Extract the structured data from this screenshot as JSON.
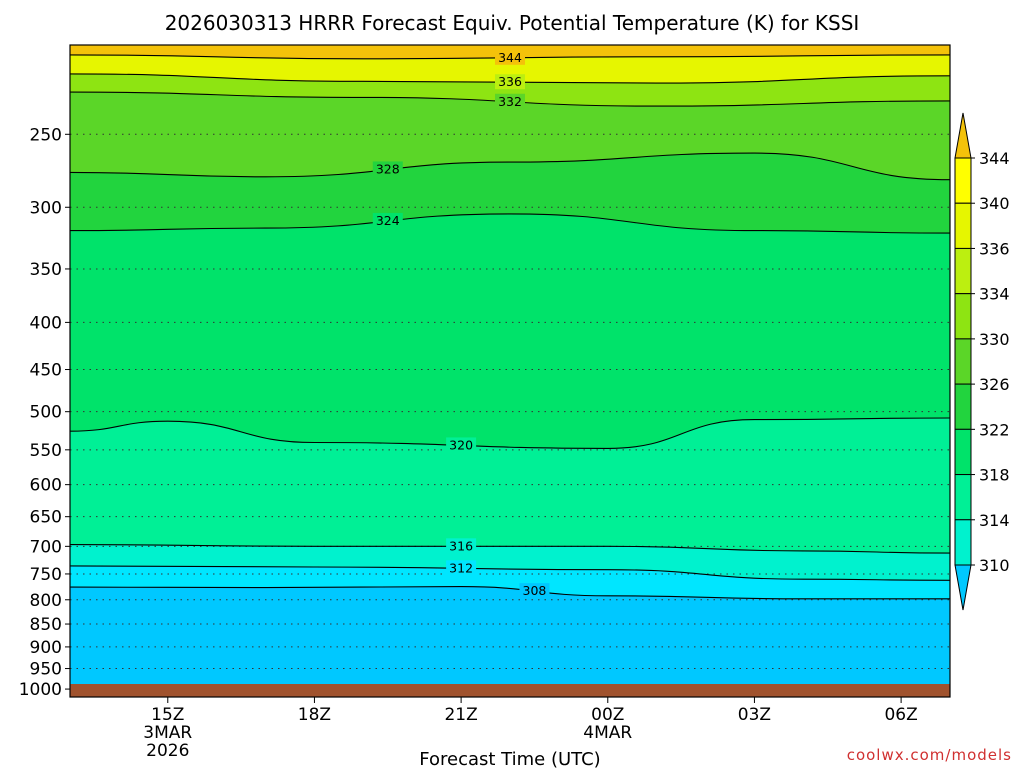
{
  "chart_data": {
    "type": "heatmap",
    "title": "2026030313 HRRR Forecast Equiv. Potential Temperature (K) for KSSI",
    "xlabel": "Forecast Time (UTC)",
    "ylabel": "",
    "credit": "coolwx.com/models",
    "x_ticks": [
      {
        "label": "15Z",
        "sub1": "3MAR",
        "sub2": "2026",
        "hour": 2
      },
      {
        "label": "18Z",
        "sub1": "",
        "sub2": "",
        "hour": 5
      },
      {
        "label": "21Z",
        "sub1": "",
        "sub2": "",
        "hour": 8
      },
      {
        "label": "00Z",
        "sub1": "4MAR",
        "sub2": "",
        "hour": 11
      },
      {
        "label": "03Z",
        "sub1": "",
        "sub2": "",
        "hour": 14
      },
      {
        "label": "06Z",
        "sub1": "",
        "sub2": "",
        "hour": 17
      }
    ],
    "xlim": [
      0,
      18
    ],
    "y_ticks": [
      "250",
      "300",
      "350",
      "400",
      "450",
      "500",
      "550",
      "600",
      "650",
      "700",
      "750",
      "800",
      "850",
      "900",
      "950",
      "1000"
    ],
    "y_tick_values": [
      250,
      300,
      350,
      400,
      450,
      500,
      550,
      600,
      650,
      700,
      750,
      800,
      850,
      900,
      950,
      1000
    ],
    "ylim": [
      200,
      1020
    ],
    "y_scale": "log",
    "colorbar": {
      "labels": [
        "344",
        "340",
        "336",
        "334",
        "330",
        "326",
        "322",
        "318",
        "314",
        "310"
      ],
      "levels": [
        310,
        314,
        318,
        322,
        326,
        330,
        334,
        336,
        340,
        344
      ],
      "colors": [
        "#00e6ff",
        "#00f2ce",
        "#00f096",
        "#00e36a",
        "#22d43e",
        "#5bd628",
        "#8ee412",
        "#bcef10",
        "#e6f600",
        "#ffff00"
      ],
      "extend_low": "#00c8ff",
      "extend_high": "#f4c20a"
    },
    "contours": [
      {
        "value": 344,
        "label": "344",
        "points": [
          [
            0,
            205
          ],
          [
            6,
            207
          ],
          [
            12,
            206
          ],
          [
            18,
            205
          ]
        ]
      },
      {
        "value": 336,
        "label": "336",
        "points": [
          [
            0,
            215
          ],
          [
            6,
            219
          ],
          [
            12,
            220
          ],
          [
            18,
            216
          ]
        ]
      },
      {
        "value": 332,
        "label": "332",
        "points": [
          [
            0,
            225
          ],
          [
            6,
            228
          ],
          [
            12,
            233
          ],
          [
            18,
            230
          ]
        ]
      },
      {
        "value": 328,
        "label": "328",
        "points": [
          [
            0,
            275
          ],
          [
            4,
            278
          ],
          [
            9,
            268
          ],
          [
            14,
            262
          ],
          [
            18,
            280
          ]
        ]
      },
      {
        "value": 324,
        "label": "324",
        "points": [
          [
            0,
            318
          ],
          [
            4,
            316
          ],
          [
            9,
            305
          ],
          [
            14,
            318
          ],
          [
            18,
            320
          ]
        ]
      },
      {
        "value": 320,
        "label": "320",
        "points": [
          [
            0,
            525
          ],
          [
            2,
            512
          ],
          [
            5,
            540
          ],
          [
            11,
            548
          ],
          [
            14,
            510
          ],
          [
            18,
            508
          ]
        ]
      },
      {
        "value": 316,
        "label": "316",
        "points": [
          [
            0,
            697
          ],
          [
            5,
            700
          ],
          [
            11,
            700
          ],
          [
            15,
            708
          ],
          [
            18,
            712
          ]
        ]
      },
      {
        "value": 312,
        "label": "312",
        "points": [
          [
            0,
            735
          ],
          [
            5,
            737
          ],
          [
            11,
            742
          ],
          [
            15,
            760
          ],
          [
            18,
            762
          ]
        ]
      },
      {
        "value": 308,
        "label": "308",
        "points": [
          [
            0,
            775
          ],
          [
            4,
            776
          ],
          [
            8,
            774
          ],
          [
            11,
            792
          ],
          [
            15,
            798
          ],
          [
            18,
            798
          ]
        ]
      }
    ]
  }
}
